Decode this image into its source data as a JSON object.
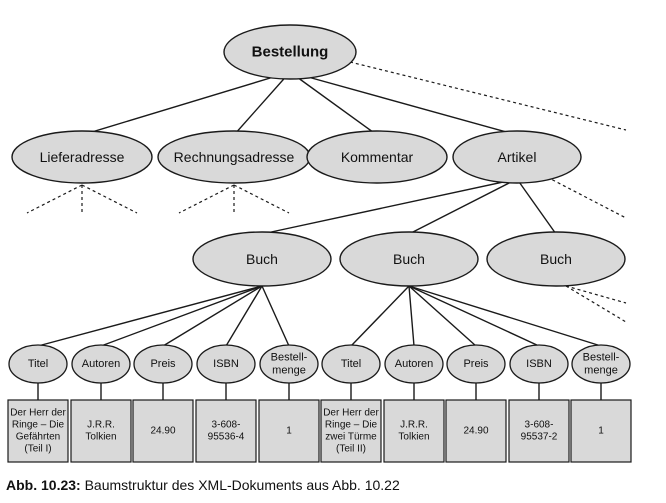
{
  "nodes": {
    "root": "Bestellung",
    "lieferadresse": "Lieferadresse",
    "rechnungsadresse": "Rechnungsadresse",
    "kommentar": "Kommentar",
    "artikel": "Artikel",
    "buch1": "Buch",
    "buch2": "Buch",
    "buch3": "Buch"
  },
  "fields": [
    {
      "label": "Titel",
      "value": [
        "Der Herr der",
        "Ringe – Die",
        "Gefährten",
        "(Teil I)"
      ]
    },
    {
      "label": "Autoren",
      "value": [
        "J.R.R.",
        "Tolkien"
      ]
    },
    {
      "label": "Preis",
      "value": [
        "24.90"
      ]
    },
    {
      "label": "ISBN",
      "value": [
        "3-608-",
        "95536-4"
      ]
    },
    {
      "label": [
        "Bestell-",
        "menge"
      ],
      "value": [
        "1"
      ]
    },
    {
      "label": "Titel",
      "value": [
        "Der Herr der",
        "Ringe – Die",
        "zwei Türme",
        "(Teil II)"
      ]
    },
    {
      "label": "Autoren",
      "value": [
        "J.R.R.",
        "Tolkien"
      ]
    },
    {
      "label": "Preis",
      "value": [
        "24.90"
      ]
    },
    {
      "label": "ISBN",
      "value": [
        "3-608-",
        "95537-2"
      ]
    },
    {
      "label": [
        "Bestell-",
        "menge"
      ],
      "value": [
        "1"
      ]
    }
  ],
  "caption": {
    "label": "Abb. 10.23:",
    "text": " Baumstruktur des XML-Dokuments aus Abb. 10.22"
  },
  "colors": {
    "node_fill": "#d9d9d9",
    "node_stroke": "#1a1a1a",
    "edge": "#1a1a1a"
  }
}
